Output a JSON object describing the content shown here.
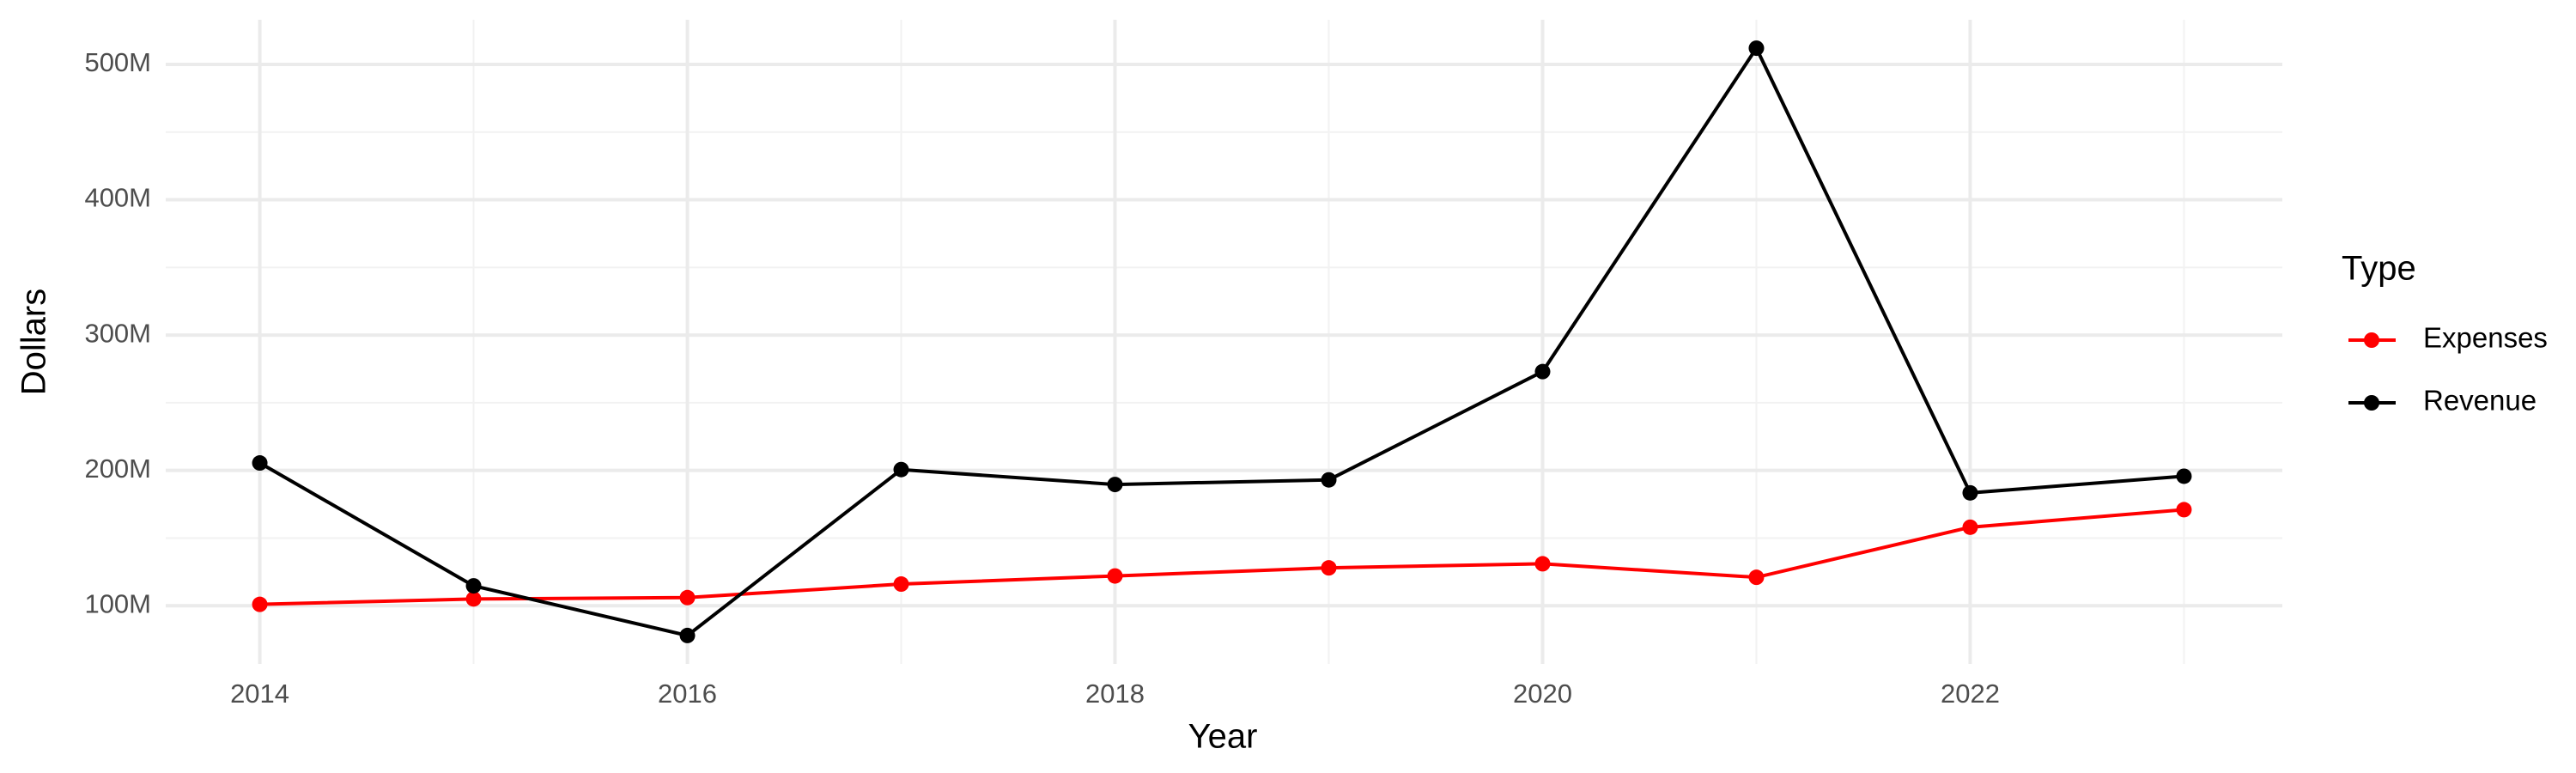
{
  "chart_data": {
    "type": "line",
    "x_label": "Year",
    "y_label": "Dollars",
    "legend_title": "Type",
    "legend_position": "right",
    "x": [
      2014,
      2015,
      2016,
      2017,
      2018,
      2019,
      2020,
      2021,
      2022,
      2023
    ],
    "series": [
      {
        "name": "Expenses",
        "color": "#ff0000",
        "values": [
          101000000,
          105000000,
          106000000,
          116000000,
          122000000,
          128000000,
          131000000,
          121000000,
          158000000,
          171000000
        ]
      },
      {
        "name": "Revenue",
        "color": "#000000",
        "values": [
          205500000,
          114700000,
          78000000,
          200600000,
          189600000,
          193000000,
          273000000,
          512000000,
          183400000,
          195700000
        ]
      }
    ],
    "xlim": [
      2013.56,
      2023.46
    ],
    "ylim": [
      57000000,
      533000000
    ],
    "xticks": [
      2014,
      2016,
      2018,
      2020,
      2022
    ],
    "yticks": [
      {
        "value": 100000000,
        "label": "100M"
      },
      {
        "value": 200000000,
        "label": "200M"
      },
      {
        "value": 300000000,
        "label": "300M"
      },
      {
        "value": 400000000,
        "label": "400M"
      },
      {
        "value": 500000000,
        "label": "500M"
      }
    ],
    "grid": true,
    "minor_grid": true
  }
}
